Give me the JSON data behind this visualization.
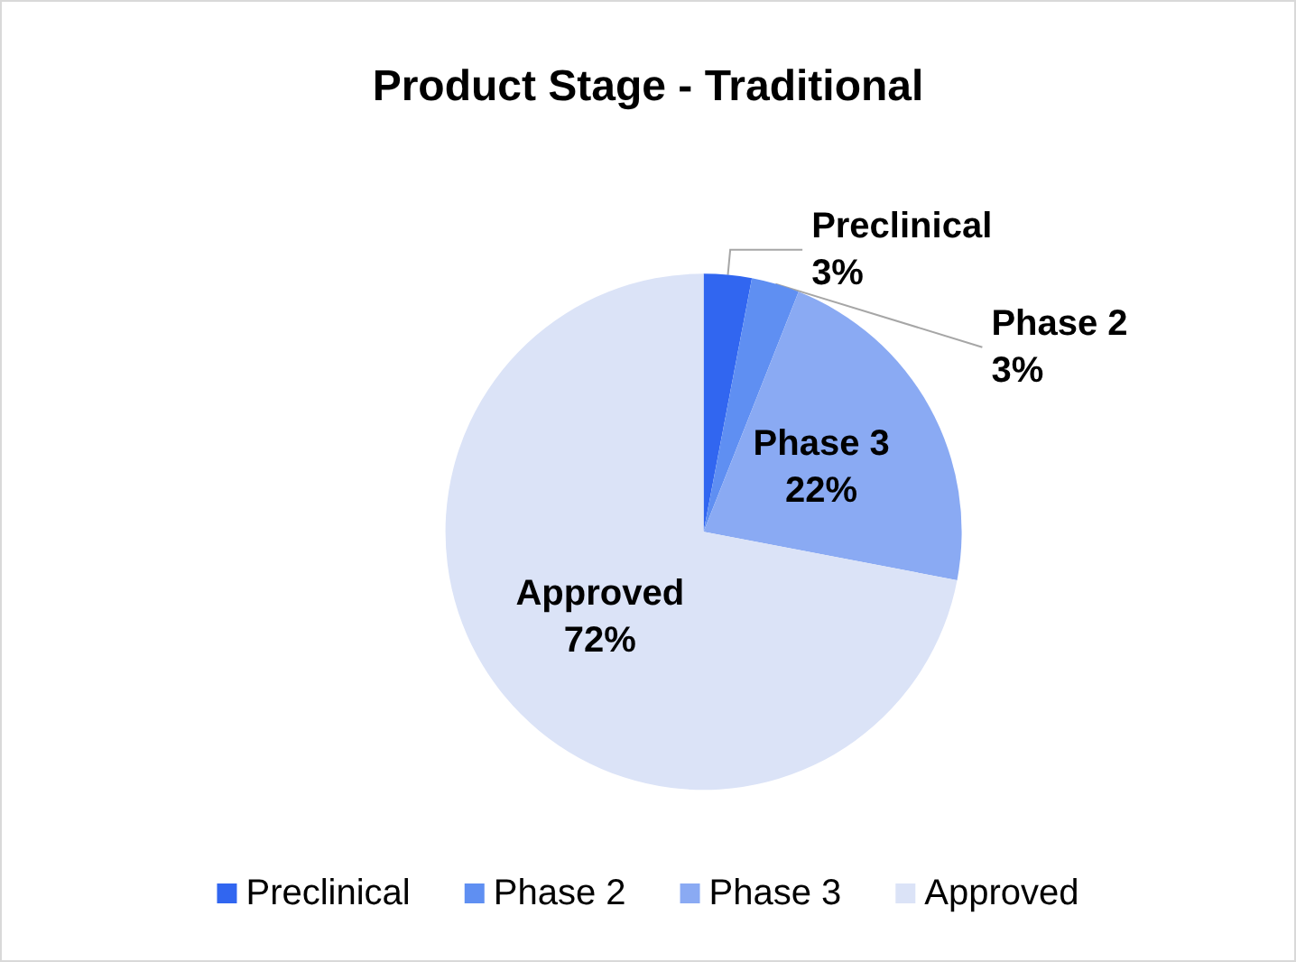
{
  "chart_data": {
    "type": "pie",
    "title": "Product Stage - Traditional",
    "categories": [
      "Preclinical",
      "Phase 2",
      "Phase 3",
      "Approved"
    ],
    "values": [
      3,
      3,
      22,
      72
    ],
    "value_labels": [
      "3%",
      "3%",
      "22%",
      "72%"
    ],
    "colors": [
      "#3166f0",
      "#5f8ff2",
      "#8aaaf3",
      "#dbe3f7"
    ],
    "legend": "bottom"
  }
}
